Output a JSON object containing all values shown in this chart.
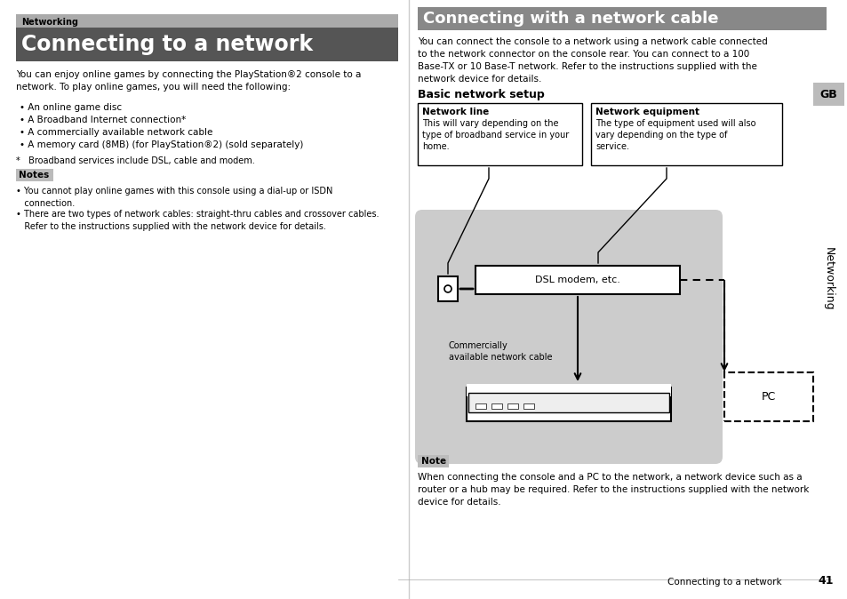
{
  "bg_color": "#ffffff",
  "left_panel": {
    "networking_label": "Networking",
    "title": "Connecting to a network",
    "title_bg": "#666666",
    "networking_label_bg": "#888888",
    "body_text": "You can enjoy online games by connecting the PlayStation®2 console to a\nnetwork. To play online games, you will need the following:",
    "bullets": [
      "An online game disc",
      "A Broadband Internet connection*",
      "A commercially available network cable",
      "A memory card (8MB) (for PlayStation®2) (sold separately)"
    ],
    "footnote": "*   Broadband services include DSL, cable and modem.",
    "notes_label": "Notes",
    "notes_label_bg": "#bbbbbb",
    "note1": "• You cannot play online games with this console using a dial-up or ISDN\n   connection.",
    "note2": "• There are two types of network cables: straight-thru cables and crossover cables.\n   Refer to the instructions supplied with the network device for details."
  },
  "right_panel": {
    "title": "Connecting with a network cable",
    "title_bg": "#888888",
    "body_text": "You can connect the console to a network using a network cable connected\nto the network connector on the console rear. You can connect to a 100\nBase-TX or 10 Base-T network. Refer to the instructions supplied with the\nnetwork device for details.",
    "basic_setup_title": "Basic network setup",
    "box1_title": "Network line",
    "box1_text": "This will vary depending on the\ntype of broadband service in your\nhome.",
    "box2_title": "Network equipment",
    "box2_text": "The type of equipment used will also\nvary depending on the type of\nservice.",
    "diagram_bg": "#cccccc",
    "dsl_label": "DSL modem, etc.",
    "cable_label": "Commercially\navailable network cable",
    "pc_label": "PC",
    "note_label": "Note",
    "note_label_bg": "#bbbbbb",
    "note_text": "When connecting the console and a PC to the network, a network device such as a\nrouter or a hub may be required. Refer to the instructions supplied with the network\ndevice for details.",
    "footer_text": "Connecting to a network",
    "footer_page": "41",
    "gb_label": "GB",
    "networking_side": "Networking"
  }
}
